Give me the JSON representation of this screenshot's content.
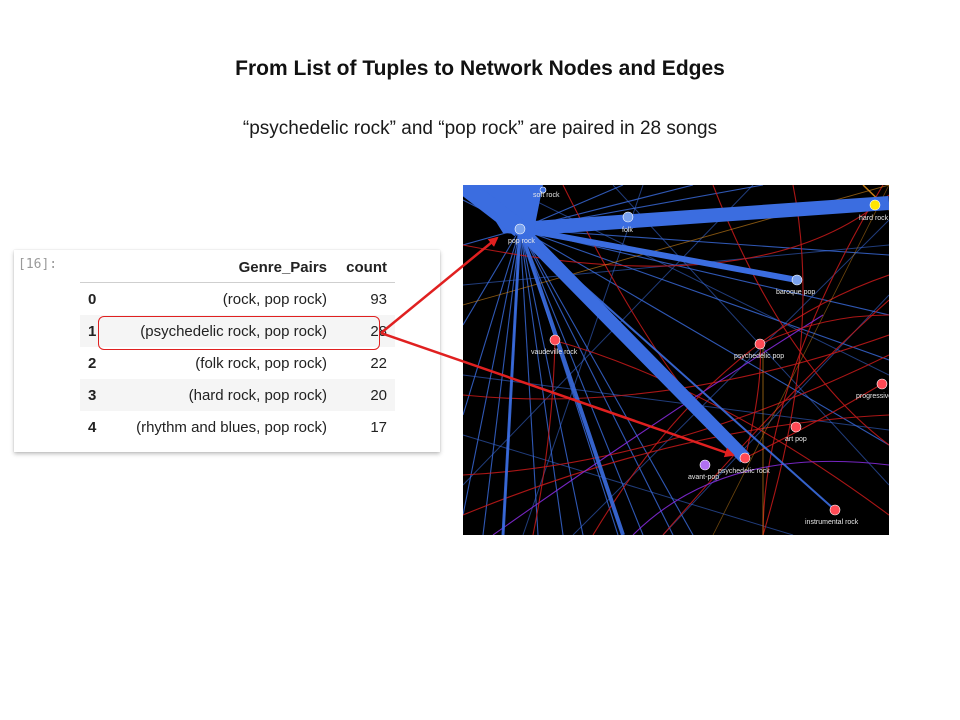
{
  "slide": {
    "title": "From List of Tuples to Network Nodes and Edges",
    "subtitle": "“psychedelic rock” and “pop rock” are paired in 28 songs"
  },
  "dataframe": {
    "prompt": "[16]:",
    "columns": [
      "",
      "Genre_Pairs",
      "count"
    ],
    "rows": [
      {
        "index": "0",
        "pair": "(rock, pop rock)",
        "count": "93"
      },
      {
        "index": "1",
        "pair": "(psychedelic rock, pop rock)",
        "count": "28"
      },
      {
        "index": "2",
        "pair": "(folk rock, pop rock)",
        "count": "22"
      },
      {
        "index": "3",
        "pair": "(hard rock, pop rock)",
        "count": "20"
      },
      {
        "index": "4",
        "pair": "(rhythm and blues, pop rock)",
        "count": "17"
      }
    ],
    "highlighted_row": 1
  },
  "network": {
    "background": "#000000",
    "edge_color_blue": "#3b6de0",
    "edge_color_red": "#c81a1a",
    "nodes": [
      {
        "label": "soft rock",
        "color": "#3b6de0"
      },
      {
        "label": "pop rock",
        "color": "#7aa2ee"
      },
      {
        "label": "folk",
        "color": "#7aa2ee"
      },
      {
        "label": "hard rock",
        "color": "#ffe500"
      },
      {
        "label": "baroque pop",
        "color": "#7aa2ee"
      },
      {
        "label": "vaudeville rock",
        "color": "#ff4a55"
      },
      {
        "label": "psychedelic pop",
        "color": "#ff4a55"
      },
      {
        "label": "progressive",
        "color": "#ff4a55"
      },
      {
        "label": "art pop",
        "color": "#ff4a55"
      },
      {
        "label": "psychedelic rock",
        "color": "#ff4a55"
      },
      {
        "label": "avant-pop",
        "color": "#b070f0"
      },
      {
        "label": "instrumental rock",
        "color": "#ff4a55"
      }
    ]
  },
  "annotations": {
    "arrow_color": "#e02020"
  }
}
